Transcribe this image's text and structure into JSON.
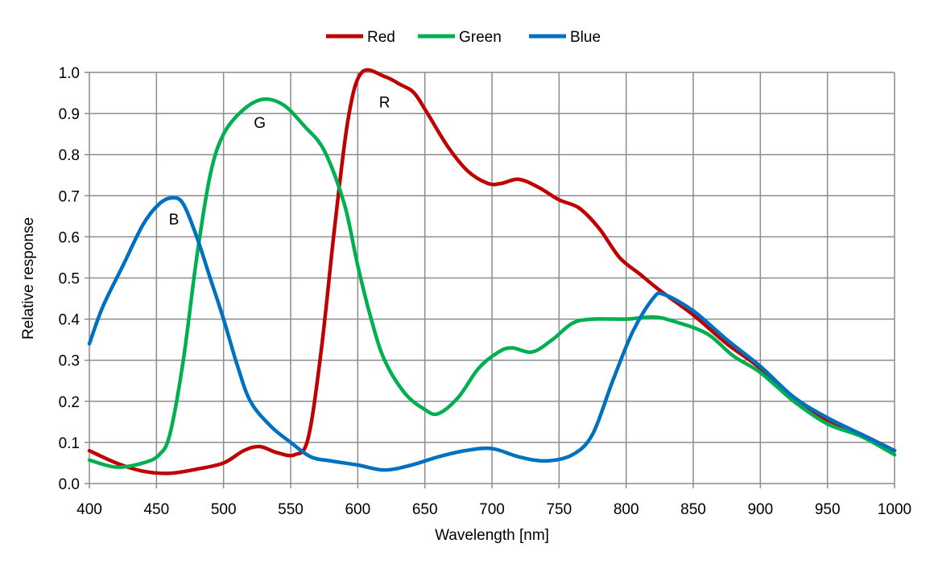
{
  "chart_data": {
    "type": "line",
    "title": "",
    "xlabel": "Wavelength [nm]",
    "ylabel": "Relative response",
    "xlim": [
      400,
      1000
    ],
    "ylim": [
      0,
      1.0
    ],
    "xticks": [
      400,
      450,
      500,
      550,
      600,
      650,
      700,
      750,
      800,
      850,
      900,
      950,
      1000
    ],
    "yticks": [
      0.0,
      0.1,
      0.2,
      0.3,
      0.4,
      0.5,
      0.6,
      0.7,
      0.8,
      0.9,
      1.0
    ],
    "grid": true,
    "legend_position": "top",
    "series": [
      {
        "name": "Red",
        "color": "#c00000",
        "points": [
          [
            400,
            0.08
          ],
          [
            420,
            0.05
          ],
          [
            440,
            0.03
          ],
          [
            460,
            0.025
          ],
          [
            480,
            0.035
          ],
          [
            500,
            0.05
          ],
          [
            515,
            0.08
          ],
          [
            527,
            0.09
          ],
          [
            540,
            0.075
          ],
          [
            553,
            0.07
          ],
          [
            563,
            0.11
          ],
          [
            573,
            0.33
          ],
          [
            583,
            0.63
          ],
          [
            593,
            0.89
          ],
          [
            603,
            1.0
          ],
          [
            620,
            0.99
          ],
          [
            632,
            0.97
          ],
          [
            642,
            0.95
          ],
          [
            652,
            0.9
          ],
          [
            667,
            0.82
          ],
          [
            682,
            0.76
          ],
          [
            697,
            0.73
          ],
          [
            707,
            0.73
          ],
          [
            720,
            0.74
          ],
          [
            735,
            0.72
          ],
          [
            750,
            0.69
          ],
          [
            765,
            0.67
          ],
          [
            780,
            0.62
          ],
          [
            795,
            0.55
          ],
          [
            810,
            0.51
          ],
          [
            825,
            0.47
          ],
          [
            850,
            0.41
          ],
          [
            875,
            0.34
          ],
          [
            900,
            0.28
          ],
          [
            925,
            0.2
          ],
          [
            950,
            0.155
          ],
          [
            975,
            0.12
          ],
          [
            1000,
            0.08
          ]
        ]
      },
      {
        "name": "Green",
        "color": "#00b050",
        "points": [
          [
            400,
            0.057
          ],
          [
            420,
            0.04
          ],
          [
            440,
            0.05
          ],
          [
            452,
            0.07
          ],
          [
            460,
            0.12
          ],
          [
            470,
            0.3
          ],
          [
            480,
            0.55
          ],
          [
            490,
            0.75
          ],
          [
            500,
            0.85
          ],
          [
            515,
            0.91
          ],
          [
            530,
            0.935
          ],
          [
            545,
            0.92
          ],
          [
            560,
            0.87
          ],
          [
            575,
            0.81
          ],
          [
            590,
            0.68
          ],
          [
            600,
            0.53
          ],
          [
            610,
            0.4
          ],
          [
            620,
            0.3
          ],
          [
            635,
            0.22
          ],
          [
            650,
            0.18
          ],
          [
            660,
            0.17
          ],
          [
            675,
            0.21
          ],
          [
            690,
            0.28
          ],
          [
            705,
            0.32
          ],
          [
            715,
            0.33
          ],
          [
            730,
            0.32
          ],
          [
            745,
            0.35
          ],
          [
            760,
            0.39
          ],
          [
            775,
            0.4
          ],
          [
            800,
            0.4
          ],
          [
            820,
            0.405
          ],
          [
            835,
            0.395
          ],
          [
            860,
            0.365
          ],
          [
            880,
            0.31
          ],
          [
            900,
            0.27
          ],
          [
            925,
            0.2
          ],
          [
            950,
            0.145
          ],
          [
            975,
            0.115
          ],
          [
            1000,
            0.07
          ]
        ]
      },
      {
        "name": "Blue",
        "color": "#0070c0",
        "points": [
          [
            400,
            0.34
          ],
          [
            410,
            0.43
          ],
          [
            425,
            0.53
          ],
          [
            440,
            0.63
          ],
          [
            452,
            0.68
          ],
          [
            462,
            0.695
          ],
          [
            470,
            0.68
          ],
          [
            480,
            0.6
          ],
          [
            490,
            0.5
          ],
          [
            500,
            0.4
          ],
          [
            510,
            0.29
          ],
          [
            520,
            0.2
          ],
          [
            535,
            0.14
          ],
          [
            550,
            0.1
          ],
          [
            565,
            0.065
          ],
          [
            580,
            0.055
          ],
          [
            600,
            0.045
          ],
          [
            620,
            0.033
          ],
          [
            640,
            0.045
          ],
          [
            660,
            0.065
          ],
          [
            680,
            0.08
          ],
          [
            700,
            0.085
          ],
          [
            720,
            0.065
          ],
          [
            740,
            0.055
          ],
          [
            760,
            0.07
          ],
          [
            775,
            0.12
          ],
          [
            790,
            0.25
          ],
          [
            805,
            0.37
          ],
          [
            820,
            0.45
          ],
          [
            828,
            0.46
          ],
          [
            850,
            0.42
          ],
          [
            875,
            0.35
          ],
          [
            900,
            0.285
          ],
          [
            925,
            0.21
          ],
          [
            950,
            0.16
          ],
          [
            975,
            0.12
          ],
          [
            1000,
            0.08
          ]
        ]
      }
    ],
    "annotations": [
      {
        "text": "B",
        "x": 463,
        "y": 0.63
      },
      {
        "text": "G",
        "x": 527,
        "y": 0.865
      },
      {
        "text": "R",
        "x": 620,
        "y": 0.915
      }
    ]
  }
}
